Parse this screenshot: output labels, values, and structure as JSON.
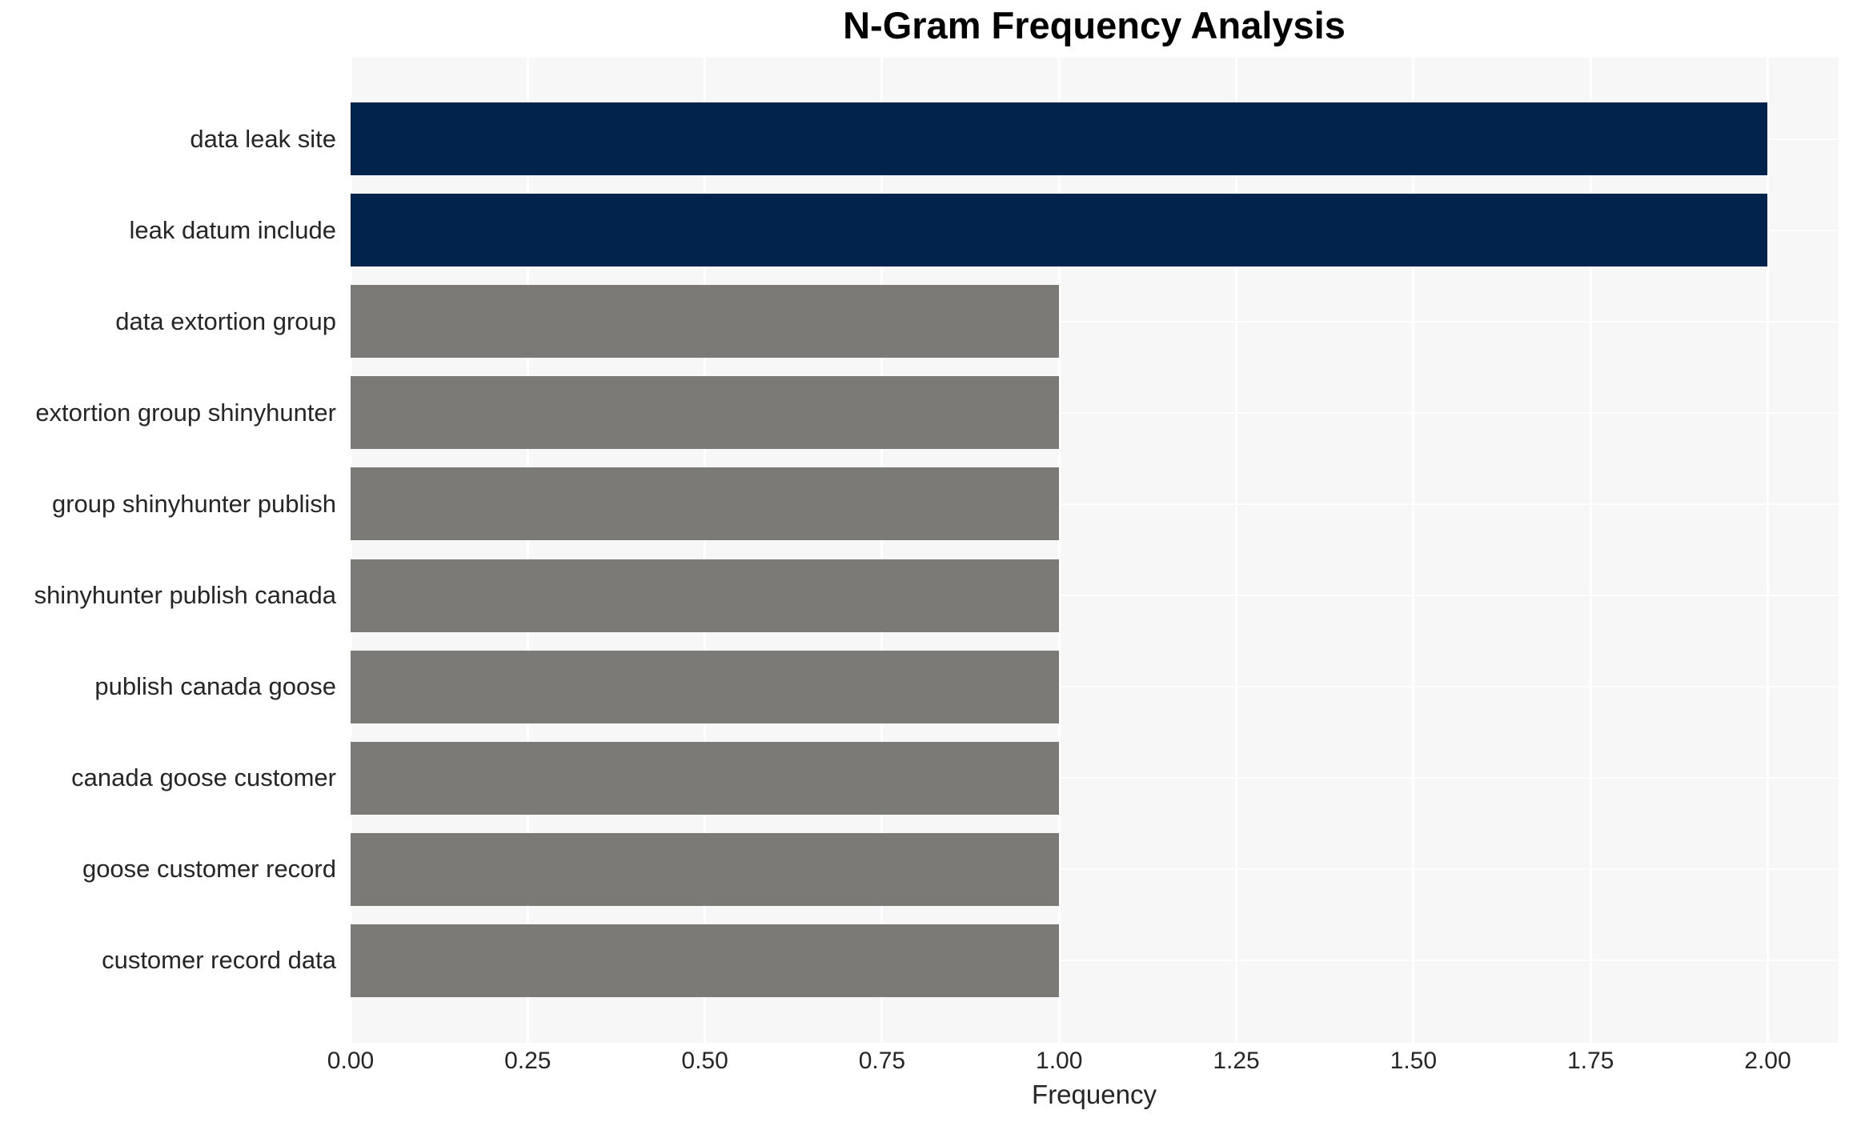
{
  "chart_data": {
    "type": "bar",
    "orientation": "horizontal",
    "title": "N-Gram Frequency Analysis",
    "xlabel": "Frequency",
    "ylabel": "",
    "categories": [
      "data leak site",
      "leak datum include",
      "data extortion group",
      "extortion group shinyhunter",
      "group shinyhunter publish",
      "shinyhunter publish canada",
      "publish canada goose",
      "canada goose customer",
      "goose customer record",
      "customer record data"
    ],
    "values": [
      2,
      2,
      1,
      1,
      1,
      1,
      1,
      1,
      1,
      1
    ],
    "bar_colors": [
      "#02234c",
      "#02234c",
      "#7b7a77",
      "#7b7a77",
      "#7b7a77",
      "#7b7a77",
      "#7b7a77",
      "#7b7a77",
      "#7b7a77",
      "#7b7a77"
    ],
    "x_ticks": [
      0.0,
      0.25,
      0.5,
      0.75,
      1.0,
      1.25,
      1.5,
      1.75,
      2.0
    ],
    "x_tick_labels": [
      "0.00",
      "0.25",
      "0.50",
      "0.75",
      "1.00",
      "1.25",
      "1.50",
      "1.75",
      "2.00"
    ],
    "xlim": [
      0,
      2.1
    ],
    "grid": true,
    "legend": false,
    "styles": {
      "highlight_color": "#02234c",
      "default_color": "#7b7a77",
      "plot_background": "#f7f7f7",
      "grid_color": "#ffffff",
      "text_color": "#262626",
      "title_color": "#000000"
    }
  }
}
